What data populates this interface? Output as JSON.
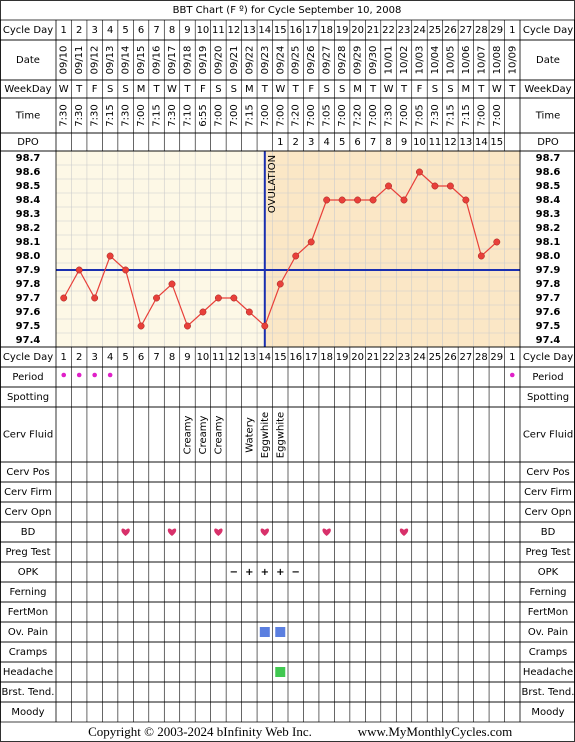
{
  "title": "BBT Chart (F º) for Cycle September 10, 2008",
  "row_labels": {
    "cycle_day": "Cycle Day",
    "date": "Date",
    "weekday": "WeekDay",
    "time": "Time",
    "dpo": "DPO",
    "period": "Period",
    "spotting": "Spotting",
    "cerv_fluid": "Cerv Fluid",
    "cerv_pos": "Cerv Pos",
    "cerv_firm": "Cerv Firm",
    "cerv_opn": "Cerv Opn",
    "bd": "BD",
    "preg_test": "Preg Test",
    "opk": "OPK",
    "ferning": "Ferning",
    "fertmon": "FertMon",
    "ov_pain": "Ov. Pain",
    "cramps": "Cramps",
    "headache": "Headache",
    "brst_tend": "Brst. Tend.",
    "moody": "Moody"
  },
  "dates": [
    "09/10",
    "09/11",
    "09/12",
    "09/13",
    "09/14",
    "09/15",
    "09/16",
    "09/17",
    "09/18",
    "09/19",
    "09/20",
    "09/21",
    "09/22",
    "09/23",
    "09/24",
    "09/25",
    "09/26",
    "09/27",
    "09/28",
    "09/29",
    "09/30",
    "10/01",
    "10/02",
    "10/03",
    "10/04",
    "10/05",
    "10/06",
    "10/07",
    "10/08",
    "10/09"
  ],
  "weekdays": [
    "W",
    "T",
    "F",
    "S",
    "S",
    "M",
    "T",
    "W",
    "T",
    "F",
    "S",
    "S",
    "M",
    "T",
    "W",
    "T",
    "F",
    "S",
    "S",
    "M",
    "T",
    "W",
    "T",
    "F",
    "S",
    "S",
    "M",
    "T",
    "W",
    "T"
  ],
  "times": [
    "7:30",
    "7:30",
    "7:30",
    "7:15",
    "7:30",
    "7:00",
    "7:15",
    "7:30",
    "7:10",
    "6:55",
    "7:00",
    "7:00",
    "7:15",
    "7:00",
    "7:00",
    "7:20",
    "7:00",
    "7:05",
    "7:00",
    "7:20",
    "7:00",
    "7:30",
    "7:00",
    "7:05",
    "7:30",
    "7:15",
    "7:15",
    "7:00",
    "7:00",
    null
  ],
  "dpo": [
    null,
    null,
    null,
    null,
    null,
    null,
    null,
    null,
    null,
    null,
    null,
    null,
    null,
    null,
    1,
    2,
    3,
    4,
    5,
    6,
    7,
    8,
    9,
    10,
    11,
    12,
    13,
    14,
    15,
    null
  ],
  "period": [
    true,
    true,
    true,
    true,
    false,
    false,
    false,
    false,
    false,
    false,
    false,
    false,
    false,
    false,
    false,
    false,
    false,
    false,
    false,
    false,
    false,
    false,
    false,
    false,
    false,
    false,
    false,
    false,
    false,
    true
  ],
  "cerv_fluid": [
    null,
    null,
    null,
    null,
    null,
    null,
    null,
    null,
    "Creamy",
    "Creamy",
    "Creamy",
    null,
    "Watery",
    "Eggwhite",
    "Eggwhite",
    null,
    null,
    null,
    null,
    null,
    null,
    null,
    null,
    null,
    null,
    null,
    null,
    null,
    null,
    null
  ],
  "bd": [
    false,
    false,
    false,
    false,
    true,
    false,
    false,
    true,
    false,
    false,
    true,
    false,
    false,
    true,
    false,
    false,
    false,
    true,
    false,
    false,
    false,
    false,
    true,
    false,
    false,
    false,
    false,
    false,
    false,
    false
  ],
  "opk": [
    null,
    null,
    null,
    null,
    null,
    null,
    null,
    null,
    null,
    null,
    null,
    "−",
    "+",
    "+",
    "+",
    "−",
    null,
    null,
    null,
    null,
    null,
    null,
    null,
    null,
    null,
    null,
    null,
    null,
    null,
    null
  ],
  "ov_pain": [
    false,
    false,
    false,
    false,
    false,
    false,
    false,
    false,
    false,
    false,
    false,
    false,
    false,
    true,
    true,
    false,
    false,
    false,
    false,
    false,
    false,
    false,
    false,
    false,
    false,
    false,
    false,
    false,
    false,
    false
  ],
  "headache": [
    false,
    false,
    false,
    false,
    false,
    false,
    false,
    false,
    false,
    false,
    false,
    false,
    false,
    false,
    true,
    false,
    false,
    false,
    false,
    false,
    false,
    false,
    false,
    false,
    false,
    false,
    false,
    false,
    false,
    false
  ],
  "chart_data": {
    "type": "line",
    "categories": [
      1,
      2,
      3,
      4,
      5,
      6,
      7,
      8,
      9,
      10,
      11,
      12,
      13,
      14,
      15,
      16,
      17,
      18,
      19,
      20,
      21,
      22,
      23,
      24,
      25,
      26,
      27,
      28,
      29,
      1
    ],
    "values": [
      97.7,
      97.9,
      97.7,
      98.0,
      97.9,
      97.5,
      97.7,
      97.8,
      97.5,
      97.6,
      97.7,
      97.7,
      97.6,
      97.5,
      97.8,
      98.0,
      98.1,
      98.4,
      98.4,
      98.4,
      98.4,
      98.5,
      98.4,
      98.6,
      98.5,
      98.5,
      98.4,
      98.0,
      98.1,
      null
    ],
    "color": "#e8403a",
    "ylim": [
      97.35,
      98.75
    ],
    "yticks": [
      98.7,
      98.6,
      98.5,
      98.4,
      98.3,
      98.2,
      98.1,
      {
        "value": 98.0,
        "label": "98.0"
      },
      97.9,
      97.8,
      97.7,
      97.6,
      97.5,
      97.4
    ],
    "coverline": 97.9,
    "ovulation_day": 14,
    "ovulation_label": "OVULATION"
  },
  "footer": "Copyright © 2003-2024 bInfinity Web Inc.",
  "site": "www.MyMonthlyCycles.com"
}
